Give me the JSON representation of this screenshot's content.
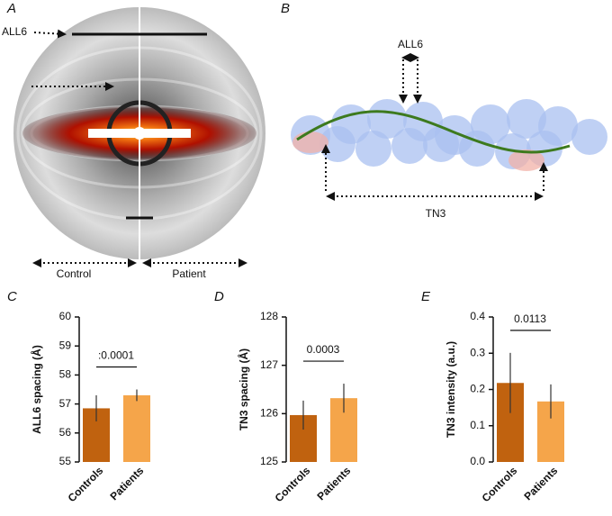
{
  "panels": {
    "a": {
      "label": "A",
      "arrow_label": "ALL6",
      "left_label": "Control",
      "right_label": "Patient"
    },
    "b": {
      "label": "B",
      "top_label": "ALL6",
      "bottom_label": "TN3"
    }
  },
  "chart_data": [
    {
      "type": "bar",
      "label": "C",
      "y_label": "ALL6 spacing (Å)",
      "categories": [
        "Controls",
        "Patients"
      ],
      "values": [
        56.85,
        57.3
      ],
      "errors": [
        0.45,
        0.2
      ],
      "colors": [
        "#c0620f",
        "#f5a54a"
      ],
      "ylim": [
        55,
        60
      ],
      "yticks": [
        55,
        56,
        57,
        58,
        59,
        60
      ],
      "annotation": ":0.0001"
    },
    {
      "type": "bar",
      "label": "D",
      "y_label": "TN3 spacing (Å)",
      "categories": [
        "Controls",
        "Patients"
      ],
      "values": [
        125.97,
        126.32
      ],
      "errors": [
        0.3,
        0.3
      ],
      "colors": [
        "#c0620f",
        "#f5a54a"
      ],
      "ylim": [
        125,
        128
      ],
      "yticks": [
        125,
        126,
        127,
        128
      ],
      "annotation": "0.0003"
    },
    {
      "type": "bar",
      "label": "E",
      "y_label": "TN3 intensity (a.u.)",
      "categories": [
        "Controls",
        "Patients"
      ],
      "values": [
        0.218,
        0.167
      ],
      "errors": [
        0.083,
        0.047
      ],
      "colors": [
        "#c0620f",
        "#f5a54a"
      ],
      "ylim": [
        0,
        0.4
      ],
      "yticks": [
        {
          "value": 0,
          "label": "0.0"
        },
        0.1,
        0.2,
        0.3,
        0.4
      ],
      "annotation": "0.0113"
    }
  ]
}
